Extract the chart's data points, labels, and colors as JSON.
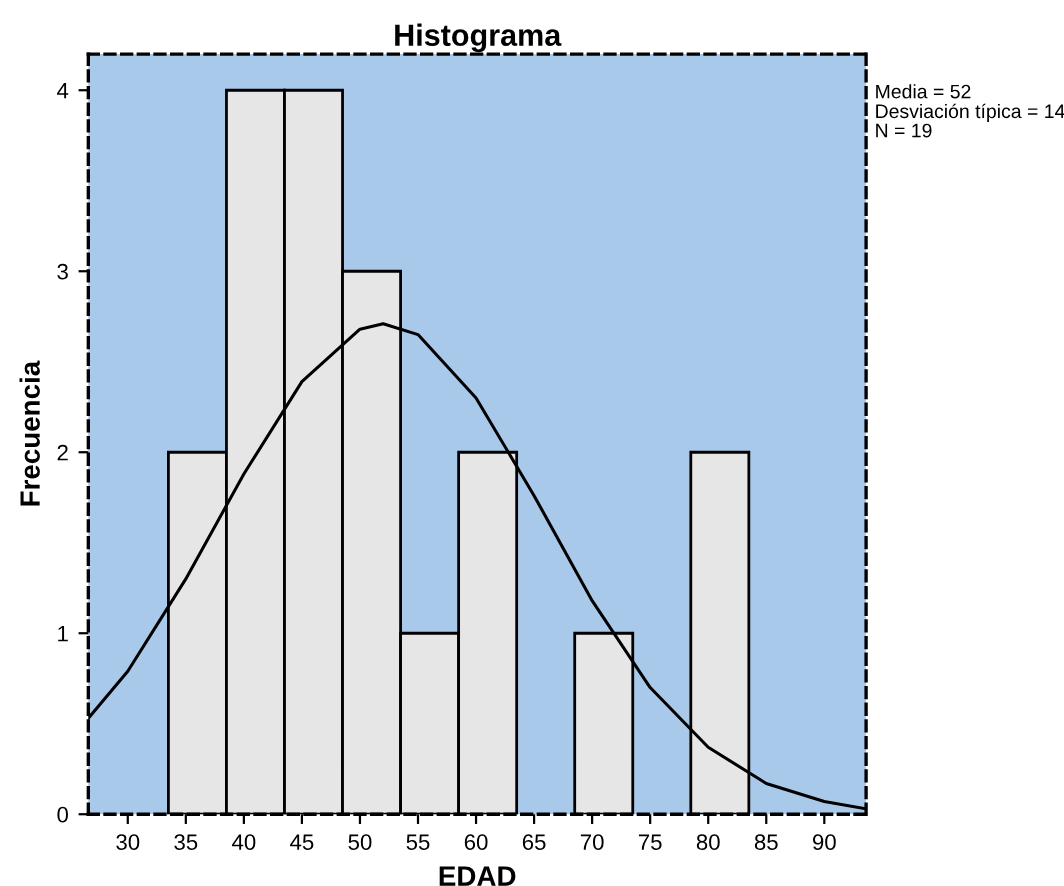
{
  "chart_data": {
    "type": "histogram",
    "title": "Histograma",
    "xlabel": "EDAD",
    "ylabel": "Frecuencia",
    "bins": [
      33.5,
      38.5,
      43.5,
      48.5,
      53.5,
      58.5,
      63.5,
      68.5,
      73.5,
      78.5,
      83.5
    ],
    "values": [
      2,
      4,
      4,
      3,
      1,
      2,
      0,
      1,
      0,
      2
    ],
    "color": "#e6e6e6",
    "series": [
      {
        "type": "line",
        "color": "#000000",
        "x": [
          26.6,
          30,
          35,
          40,
          45,
          50,
          52,
          55,
          60,
          65,
          70,
          75,
          80,
          85,
          90,
          93.6
        ],
        "values": [
          0.53,
          0.79,
          1.3,
          1.88,
          2.39,
          2.68,
          2.71,
          2.65,
          2.3,
          1.76,
          1.18,
          0.7,
          0.37,
          0.17,
          0.07,
          0.03
        ]
      }
    ],
    "xlim": [
      26.6,
      93.6
    ],
    "xticks": [
      30,
      35,
      40,
      45,
      50,
      55,
      60,
      65,
      70,
      75,
      80,
      85,
      90
    ],
    "ylim": [
      0,
      4.2
    ],
    "yticks": [
      0,
      1,
      2,
      3,
      4
    ],
    "grid": false,
    "legend": false,
    "annotations": [
      "Media = 52",
      "Desviación típica = 14",
      "N = 19"
    ]
  }
}
